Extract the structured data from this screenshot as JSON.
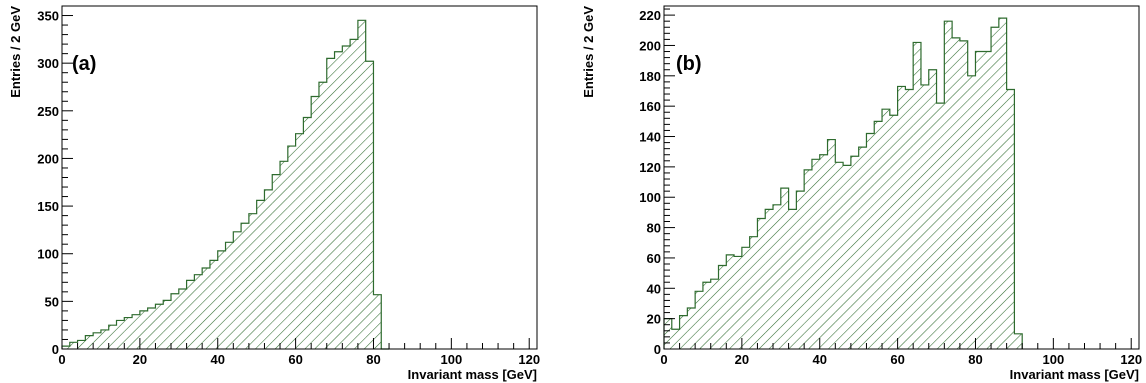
{
  "chart_data": [
    {
      "type": "bar",
      "panel_label": "(a)",
      "xlabel": "Invariant mass [GeV]",
      "ylabel": "Entries / 2 GeV",
      "xlim": [
        0,
        122
      ],
      "ylim": [
        0,
        360
      ],
      "xticks": [
        0,
        20,
        40,
        60,
        80,
        100,
        120
      ],
      "yticks": [
        0,
        50,
        100,
        150,
        200,
        250,
        300,
        350
      ],
      "bin_width": 2,
      "bin_start": 0,
      "values": [
        3,
        7,
        9,
        14,
        17,
        20,
        25,
        30,
        33,
        36,
        40,
        43,
        47,
        51,
        58,
        63,
        72,
        78,
        85,
        93,
        103,
        112,
        123,
        132,
        142,
        156,
        167,
        183,
        197,
        213,
        226,
        243,
        265,
        280,
        305,
        312,
        318,
        325,
        345,
        302,
        57,
        0
      ],
      "fill_color": "#2e6b2e",
      "grid": false
    },
    {
      "type": "bar",
      "panel_label": "(b)",
      "xlabel": "Invariant mass [GeV]",
      "ylabel": "Entries / 2 GeV",
      "xlim": [
        0,
        122
      ],
      "ylim": [
        0,
        226
      ],
      "xticks": [
        0,
        20,
        40,
        60,
        80,
        100,
        120
      ],
      "yticks": [
        0,
        20,
        40,
        60,
        80,
        100,
        120,
        140,
        160,
        180,
        200,
        220
      ],
      "bin_width": 2,
      "bin_start": 0,
      "values": [
        20,
        13,
        22,
        27,
        38,
        44,
        46,
        55,
        62,
        61,
        67,
        74,
        86,
        92,
        95,
        106,
        92,
        104,
        118,
        125,
        128,
        138,
        123,
        121,
        127,
        133,
        142,
        150,
        158,
        154,
        173,
        171,
        202,
        174,
        184,
        162,
        216,
        205,
        203,
        180,
        196,
        196,
        212,
        218,
        171,
        10
      ],
      "fill_color": "#2e6b2e",
      "grid": false
    }
  ]
}
